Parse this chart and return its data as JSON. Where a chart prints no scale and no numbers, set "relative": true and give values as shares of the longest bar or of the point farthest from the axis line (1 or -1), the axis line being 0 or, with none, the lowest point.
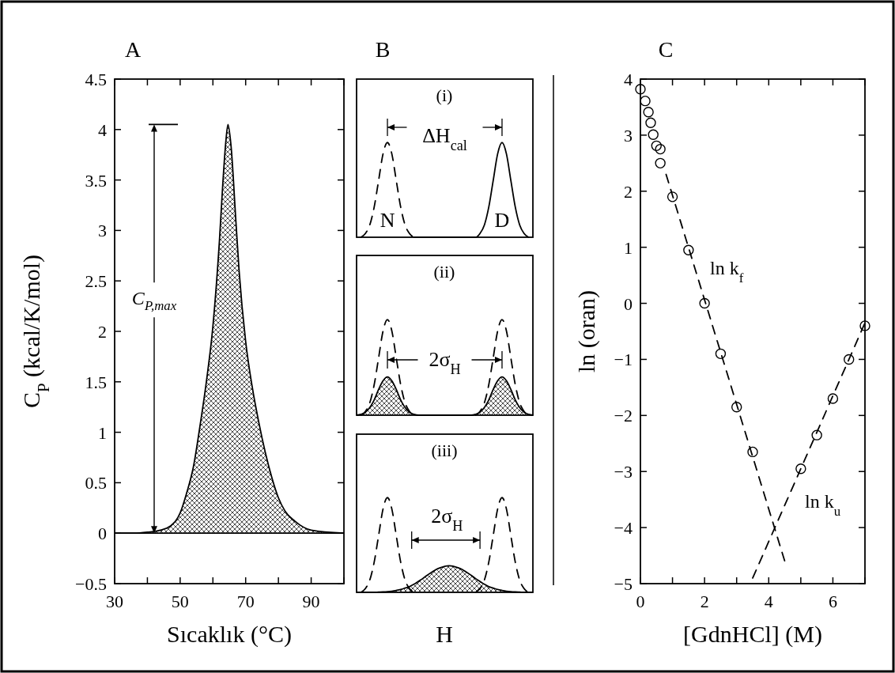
{
  "chart_data": [
    {
      "type": "area",
      "title": "A",
      "xlabel": "Sıcaklık (°C)",
      "ylabel": "C$_{P}$ (kcal/K/mol)",
      "xlim": [
        30,
        100
      ],
      "ylim": [
        -0.5,
        4.5
      ],
      "xticks": [
        30,
        {
          "value": 40,
          "label": null
        },
        50,
        {
          "value": 60,
          "label": null
        },
        70,
        {
          "value": 80,
          "label": null
        },
        90,
        {
          "value": 100,
          "label": null
        }
      ],
      "yticks": [
        {
          "value": -0.5,
          "label": "−0.5"
        },
        0,
        0.5,
        1,
        1.5,
        2,
        2.5,
        3,
        3.5,
        4,
        4.5
      ],
      "ref_lines": [
        {
          "axis": "y",
          "value": 0
        }
      ],
      "annotations": [
        "C$_{P,max}$"
      ],
      "series": [
        {
          "color": "#000000",
          "x": [
            30,
            36,
            40,
            44,
            47,
            50,
            52,
            54,
            56,
            58,
            60,
            62,
            63,
            64,
            64.6,
            65.5,
            67,
            68,
            70,
            72,
            74,
            76,
            78,
            80,
            82,
            85,
            90,
            100
          ],
          "values": [
            0,
            0,
            0.01,
            0.03,
            0.07,
            0.2,
            0.4,
            0.65,
            1.05,
            1.5,
            2.05,
            2.9,
            3.45,
            3.9,
            4.05,
            3.85,
            3.1,
            2.6,
            1.9,
            1.45,
            1.1,
            0.8,
            0.55,
            0.35,
            0.22,
            0.12,
            0.03,
            0
          ]
        }
      ]
    },
    {
      "type": "line",
      "title": "B",
      "subtitle": "(i)",
      "relative": true,
      "categories": [
        null,
        null,
        null,
        null,
        null,
        null,
        null,
        null,
        null,
        null,
        null,
        null,
        null,
        null,
        null,
        null,
        null,
        null,
        null,
        null,
        null,
        null,
        null,
        null,
        null,
        null,
        null,
        null,
        null,
        null,
        null,
        null,
        null,
        null,
        null,
        null,
        null,
        null,
        null,
        null,
        null
      ],
      "annotations": [
        "N",
        "D",
        "ΔH$_{cal}$"
      ],
      "series": [
        {
          "color": "#000000",
          "line_style": "dashed",
          "values": [
            null,
            0,
            0.04,
            0.13,
            0.32,
            0.6,
            0.88,
            1,
            0.88,
            0.6,
            0.32,
            0.13,
            0.04,
            0,
            null,
            null,
            null,
            null,
            null,
            null,
            null,
            null,
            null,
            null,
            null,
            null,
            null,
            null,
            null,
            null,
            null,
            null,
            null,
            null,
            null,
            null,
            null,
            null,
            null,
            null,
            null
          ]
        },
        {
          "color": "#000000",
          "line_style": "solid",
          "values": [
            null,
            null,
            null,
            null,
            null,
            null,
            null,
            null,
            null,
            null,
            null,
            null,
            null,
            0,
            0,
            0,
            0,
            0,
            0,
            0,
            0,
            0,
            0,
            0,
            0,
            0,
            0,
            0,
            0.04,
            0.13,
            0.32,
            0.6,
            0.88,
            1,
            0.88,
            0.6,
            0.32,
            0.13,
            0.04,
            0,
            null
          ]
        }
      ]
    },
    {
      "type": "line",
      "title": "(ii)",
      "relative": true,
      "categories": [
        null,
        null,
        null,
        null,
        null,
        null,
        null,
        null,
        null,
        null,
        null,
        null,
        null,
        null,
        null,
        null,
        null,
        null,
        null,
        null,
        null,
        null,
        null,
        null,
        null,
        null,
        null,
        null,
        null,
        null,
        null,
        null,
        null,
        null,
        null,
        null,
        null,
        null,
        null,
        null,
        null
      ],
      "annotations": [
        "2σ$_{H}$"
      ],
      "series": [
        {
          "type": "area",
          "color": "#000000",
          "values": [
            0,
            0.01,
            0.03,
            0.08,
            0.16,
            0.27,
            0.36,
            0.4,
            0.36,
            0.27,
            0.16,
            0.08,
            0.03,
            0.01,
            0,
            0,
            0,
            0,
            0,
            0,
            0,
            0,
            0,
            0,
            0,
            0,
            0,
            0.01,
            0.03,
            0.08,
            0.16,
            0.27,
            0.36,
            0.4,
            0.36,
            0.27,
            0.16,
            0.08,
            0.03,
            0.01,
            0
          ]
        },
        {
          "color": "#000000",
          "line_style": "dashed",
          "values": [
            null,
            0,
            0.04,
            0.13,
            0.32,
            0.6,
            0.88,
            1,
            0.88,
            0.6,
            0.32,
            0.13,
            0.04,
            0,
            null,
            null,
            null,
            null,
            null,
            null,
            null,
            null,
            null,
            null,
            null,
            null,
            null,
            0,
            0.04,
            0.13,
            0.32,
            0.6,
            0.88,
            1,
            0.88,
            0.6,
            0.32,
            0.13,
            0.04,
            0,
            null
          ]
        }
      ]
    },
    {
      "type": "line",
      "title": "(iii)",
      "xlabel": "H",
      "relative": true,
      "categories": [
        null,
        null,
        null,
        null,
        null,
        null,
        null,
        null,
        null,
        null,
        null,
        null,
        null,
        null,
        null,
        null,
        null,
        null,
        null,
        null,
        null,
        null,
        null,
        null,
        null,
        null,
        null,
        null,
        null,
        null,
        null,
        null,
        null,
        null,
        null,
        null,
        null,
        null,
        null,
        null,
        null
      ],
      "annotations": [
        "2σ$_{H}$"
      ],
      "series": [
        {
          "type": "area",
          "color": "#000000",
          "values": [
            0,
            0,
            0,
            0,
            0,
            0.002,
            0.004,
            0.007,
            0.012,
            0.02,
            0.03,
            0.045,
            0.06,
            0.085,
            0.115,
            0.145,
            0.18,
            0.21,
            0.24,
            0.26,
            0.275,
            0.28,
            0.275,
            0.26,
            0.24,
            0.21,
            0.18,
            0.145,
            0.115,
            0.085,
            0.06,
            0.045,
            0.03,
            0.02,
            0.012,
            0.007,
            0.004,
            0.002,
            0,
            0,
            0
          ]
        },
        {
          "color": "#000000",
          "line_style": "dashed",
          "values": [
            null,
            0,
            0.04,
            0.13,
            0.32,
            0.6,
            0.88,
            1,
            0.88,
            0.6,
            0.32,
            0.13,
            0.04,
            0,
            null,
            null,
            null,
            null,
            null,
            null,
            null,
            null,
            null,
            null,
            null,
            null,
            null,
            0,
            0.04,
            0.13,
            0.32,
            0.6,
            0.88,
            1,
            0.88,
            0.6,
            0.32,
            0.13,
            0.04,
            0,
            null
          ]
        }
      ]
    },
    {
      "type": "scatter",
      "title": "C",
      "xlabel": "[GdnHCl] (M)",
      "ylabel": "ln (oran)",
      "xlim": [
        0,
        7
      ],
      "ylim": [
        -5,
        4
      ],
      "xticks": [
        0,
        {
          "value": 1,
          "label": null
        },
        2,
        {
          "value": 3,
          "label": null
        },
        4,
        {
          "value": 5,
          "label": null
        },
        6,
        {
          "value": 7,
          "label": null
        }
      ],
      "yticks": [
        {
          "value": -5,
          "label": "−5"
        },
        {
          "value": -4,
          "label": "−4"
        },
        {
          "value": -3,
          "label": "−3"
        },
        {
          "value": -2,
          "label": "−2"
        },
        {
          "value": -1,
          "label": "−1"
        },
        0,
        1,
        2,
        3,
        4
      ],
      "series": [
        {
          "type": "line",
          "name": "ln k$_{f}$",
          "color": "#000000",
          "line_style": "dashed",
          "x": [
            0.8,
            4.5
          ],
          "values": [
            2.3,
            -4.6
          ]
        },
        {
          "type": "line",
          "name": "ln k$_{u}$",
          "color": "#000000",
          "line_style": "dashed",
          "x": [
            3.5,
            7
          ],
          "values": [
            -4.9,
            -0.35
          ]
        },
        {
          "color": "#000000",
          "marker": "circle",
          "x": [
            0,
            0.15,
            0.25,
            0.32,
            0.4,
            0.5,
            0.62,
            0.62,
            1,
            1.5,
            2,
            2.5,
            3,
            3.5,
            5,
            5.5,
            6,
            6.5,
            7
          ],
          "values": [
            3.82,
            3.61,
            3.41,
            3.22,
            3.01,
            2.81,
            2.75,
            2.5,
            1.9,
            0.95,
            0,
            -0.9,
            -1.85,
            -2.65,
            -2.95,
            -2.35,
            -1.7,
            -1.0,
            -0.4
          ]
        }
      ]
    }
  ]
}
